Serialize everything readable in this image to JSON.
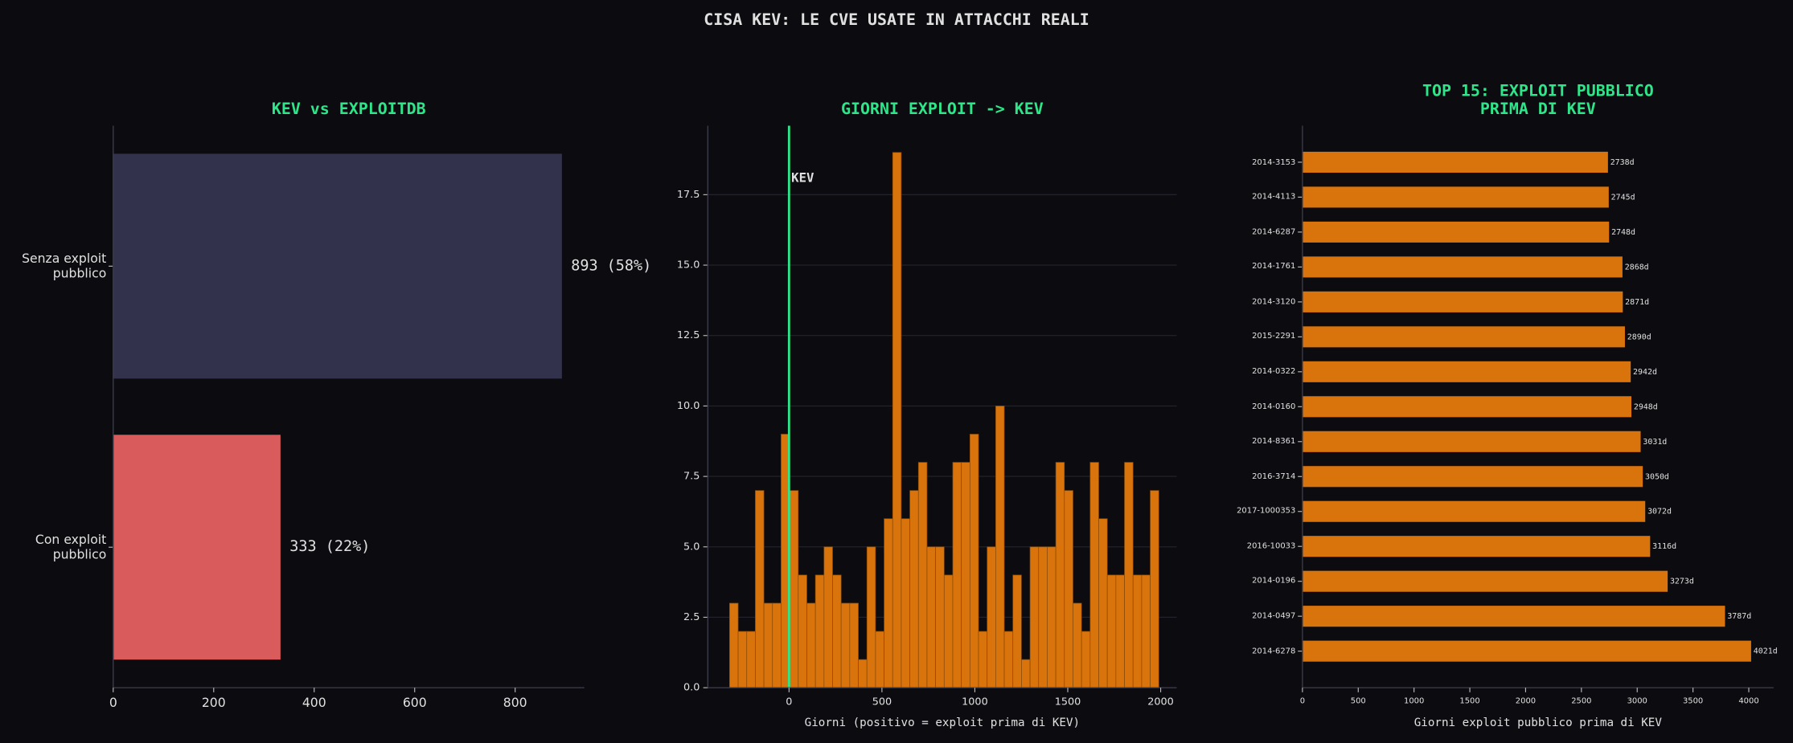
{
  "title": "CISA KEV: LE CVE USATE IN ATTACCHI REALI",
  "chart_data": [
    {
      "type": "barh",
      "title": "KEV vs EXPLOITDB",
      "categories": [
        "Senza exploit\npubblico",
        "Con exploit\npubblico"
      ],
      "values": [
        893,
        333
      ],
      "value_labels": [
        "893 (58%)",
        "333 (22%)"
      ],
      "colors": [
        "#33324d",
        "#d95b5b"
      ],
      "xlim": [
        0,
        937.65
      ],
      "xticks": [
        0,
        200,
        400,
        600,
        800
      ],
      "grid": false
    },
    {
      "type": "histogram",
      "title": "GIORNI EXPLOIT -> KEV",
      "xlabel": "Giorni (positivo = exploit prima di KEV)",
      "bins": [
        -320,
        -273.8,
        -227.6,
        -181.4,
        -135.2,
        -89,
        -42.8,
        3.4,
        49.6,
        95.8,
        142,
        188.2,
        234.4,
        280.6,
        326.8,
        373,
        419.2,
        465.4,
        511.6,
        557.8,
        604,
        650.2,
        696.4,
        742.6,
        788.8,
        835,
        881.2,
        927.4,
        973.6,
        1019.8,
        1066,
        1112.2,
        1158.4,
        1204.6,
        1250.8,
        1297,
        1343.2,
        1389.4,
        1435.6,
        1481.8,
        1528,
        1574.2,
        1620.4,
        1666.6,
        1712.8,
        1759,
        1805.2,
        1851.4,
        1897.6,
        1943.8,
        1990
      ],
      "values": [
        3,
        2,
        2,
        7,
        3,
        3,
        9,
        7,
        4,
        3,
        4,
        5,
        4,
        3,
        3,
        1,
        5,
        2,
        6,
        19,
        6,
        7,
        8,
        5,
        5,
        4,
        8,
        8,
        9,
        2,
        5,
        10,
        2,
        4,
        1,
        5,
        5,
        5,
        8,
        7,
        3,
        2,
        8,
        6,
        4,
        4,
        8,
        4,
        4,
        7
      ],
      "color": "#d9730b",
      "vline": {
        "x": 0,
        "label": "KEV",
        "color": "#2ee68a"
      },
      "xlim": [
        -437,
        2086
      ],
      "xticks": [
        0,
        500,
        1000,
        1500,
        2000
      ],
      "ylim": [
        0,
        19.95
      ],
      "yticks": [
        {
          "value": 0,
          "label": "0.0"
        },
        {
          "value": 2.5,
          "label": "2.5"
        },
        {
          "value": 5,
          "label": "5.0"
        },
        {
          "value": 7.5,
          "label": "7.5"
        },
        {
          "value": 10,
          "label": "10.0"
        },
        {
          "value": 12.5,
          "label": "12.5"
        },
        {
          "value": 15,
          "label": "15.0"
        },
        {
          "value": 17.5,
          "label": "17.5"
        }
      ],
      "grid": true
    },
    {
      "type": "barh",
      "title": "TOP 15: EXPLOIT PUBBLICO\nPRIMA DI KEV",
      "xlabel": "Giorni exploit pubblico prima di KEV",
      "categories": [
        "2014-3153",
        "2014-4113",
        "2014-6287",
        "2014-1761",
        "2014-3120",
        "2015-2291",
        "2014-0322",
        "2014-0160",
        "2014-8361",
        "2016-3714",
        "2017-1000353",
        "2016-10033",
        "2014-0196",
        "2014-0497",
        "2014-6278"
      ],
      "values": [
        2738,
        2745,
        2748,
        2868,
        2871,
        2890,
        2942,
        2948,
        3031,
        3050,
        3072,
        3116,
        3273,
        3787,
        4021
      ],
      "value_labels": [
        "2738d",
        "2745d",
        "2748d",
        "2868d",
        "2871d",
        "2890d",
        "2942d",
        "2948d",
        "3031d",
        "3050d",
        "3072d",
        "3116d",
        "3273d",
        "3787d",
        "4021d"
      ],
      "color": "#d9730b",
      "xlim": [
        0,
        4222
      ],
      "xticks": [
        0,
        500,
        1000,
        1500,
        2000,
        2500,
        3000,
        3500,
        4000
      ],
      "grid": false
    }
  ]
}
